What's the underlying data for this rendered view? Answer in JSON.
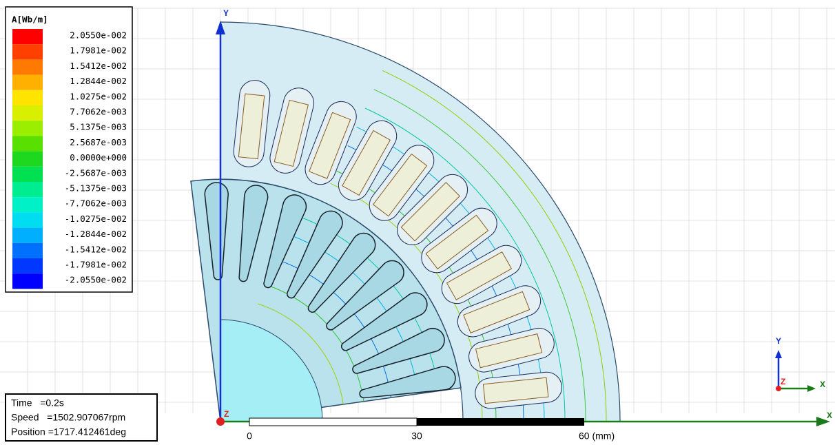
{
  "legend": {
    "title": "A[Wb/m]",
    "entries": [
      {
        "label": "2.0550e-002",
        "color": "#ff0000"
      },
      {
        "label": "1.7981e-002",
        "color": "#ff4000"
      },
      {
        "label": "1.5412e-002",
        "color": "#ff7a00"
      },
      {
        "label": "1.2844e-002",
        "color": "#ffb000"
      },
      {
        "label": "1.0275e-002",
        "color": "#ffe400"
      },
      {
        "label": "7.7062e-003",
        "color": "#d8f000"
      },
      {
        "label": "5.1375e-003",
        "color": "#9cee00"
      },
      {
        "label": "2.5687e-003",
        "color": "#5ae000"
      },
      {
        "label": "0.0000e+000",
        "color": "#1ed820"
      },
      {
        "label": "-2.5687e-003",
        "color": "#00e050"
      },
      {
        "label": "-5.1375e-003",
        "color": "#00ec90"
      },
      {
        "label": "-7.7062e-003",
        "color": "#00f0c8"
      },
      {
        "label": "-1.0275e-002",
        "color": "#00dcf0"
      },
      {
        "label": "-1.2844e-002",
        "color": "#00b0ff"
      },
      {
        "label": "-1.5412e-002",
        "color": "#0070ff"
      },
      {
        "label": "-1.7981e-002",
        "color": "#0038ff"
      },
      {
        "label": "-2.0550e-002",
        "color": "#0000ff"
      }
    ]
  },
  "info": {
    "lines": [
      "Time   =0.2s",
      "Speed   =1502.907067rpm",
      "Position =1717.412461deg"
    ]
  },
  "scale_bar": {
    "labels": [
      "0",
      "30",
      "60 (mm)"
    ]
  },
  "axes": {
    "main": {
      "y": "Y",
      "x": "X",
      "z": "Z"
    },
    "triad": {
      "y": "Y",
      "x": "X",
      "z": "Z"
    }
  }
}
